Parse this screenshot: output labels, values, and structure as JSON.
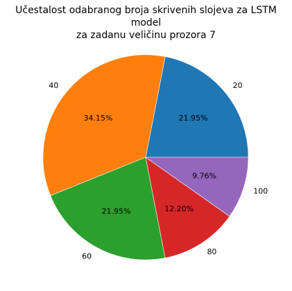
{
  "chart_data": {
    "type": "pie",
    "title_line1": "Učestalost odabranog broja skrivenih slojeva za LSTM model",
    "title_line2": "za zadanu veličinu prozora 7",
    "start_angle": 0,
    "direction": "counterclockwise",
    "slices": [
      {
        "label": "20",
        "value": 21.95,
        "pct_text": "21.95%",
        "color": "#1f77b4"
      },
      {
        "label": "40",
        "value": 34.15,
        "pct_text": "34.15%",
        "color": "#ff7f0e"
      },
      {
        "label": "60",
        "value": 21.95,
        "pct_text": "21.95%",
        "color": "#2ca02c"
      },
      {
        "label": "80",
        "value": 12.2,
        "pct_text": "12.20%",
        "color": "#d62728"
      },
      {
        "label": "100",
        "value": 9.76,
        "pct_text": "9.76%",
        "color": "#9467bd"
      }
    ]
  }
}
